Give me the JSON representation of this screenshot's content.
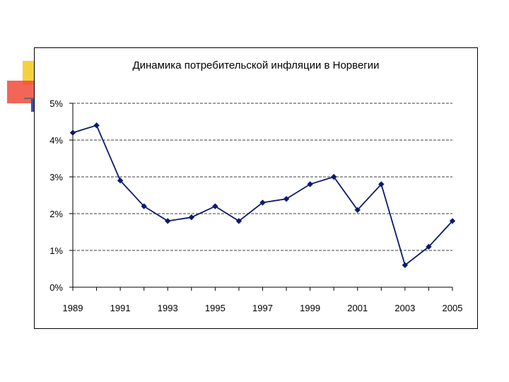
{
  "chart_data": {
    "type": "line",
    "title": "Динамика потребительской инфляции в Норвегии",
    "xlabel": "",
    "ylabel": "",
    "x": [
      1989,
      1990,
      1991,
      1992,
      1993,
      1994,
      1995,
      1996,
      1997,
      1998,
      1999,
      2000,
      2001,
      2002,
      2003,
      2004,
      2005
    ],
    "series": [
      {
        "values": [
          4.2,
          4.4,
          2.9,
          2.2,
          1.8,
          1.9,
          2.2,
          1.8,
          2.3,
          2.4,
          2.8,
          3.0,
          2.1,
          2.8,
          0.6,
          1.1,
          1.8
        ]
      }
    ],
    "ylim": [
      0,
      5
    ],
    "y_ticks": [
      "0%",
      "1%",
      "2%",
      "3%",
      "4%",
      "5%"
    ],
    "x_ticks": [
      "1989",
      "1991",
      "1993",
      "1995",
      "1997",
      "1999",
      "2001",
      "2003",
      "2005"
    ],
    "grid": true,
    "colors": {
      "line": "#0b1a6e",
      "marker": "#0b1a6e",
      "grid": "#000000"
    }
  }
}
